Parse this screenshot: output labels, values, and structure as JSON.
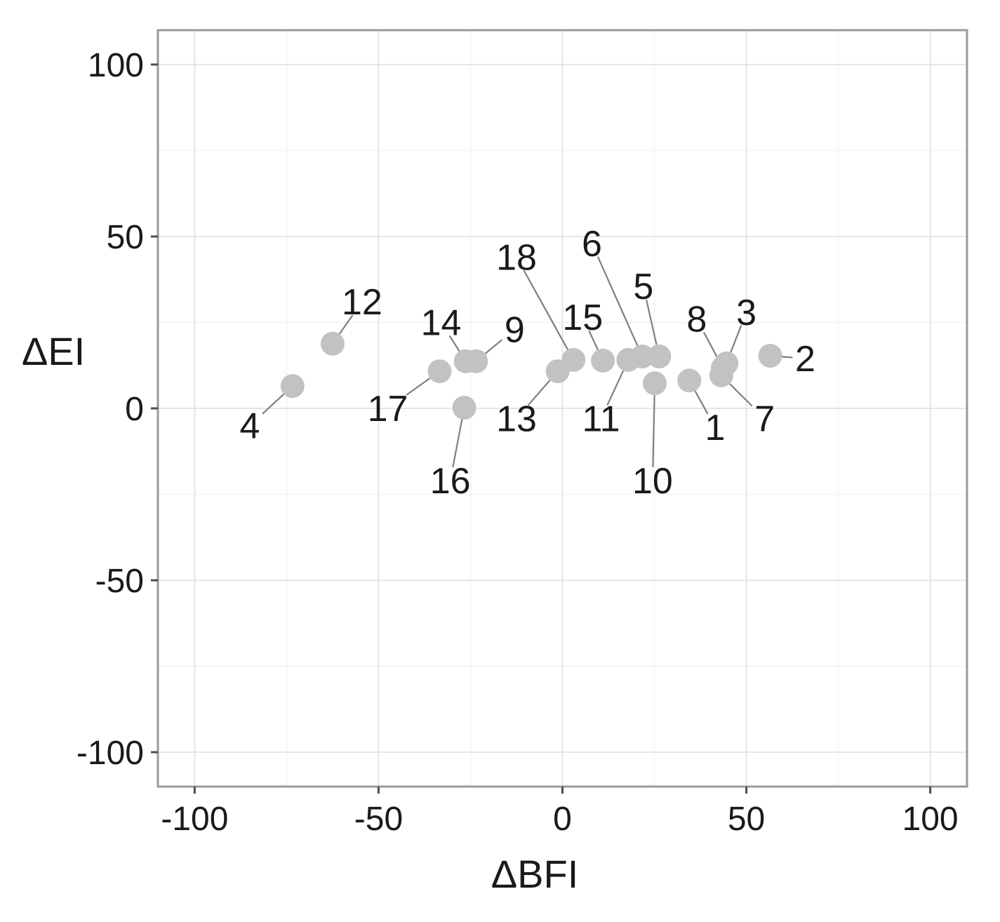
{
  "chart_data": {
    "type": "scatter",
    "xlabel": "ΔBFI",
    "ylabel": "ΔEI",
    "xlim": [
      -110,
      110
    ],
    "ylim": [
      -110,
      110
    ],
    "x_ticks": [
      -100,
      -50,
      0,
      50,
      100
    ],
    "y_ticks": [
      -100,
      -50,
      0,
      50,
      100
    ],
    "x_tick_labels": [
      "-100",
      "-50",
      "0",
      "50",
      "100"
    ],
    "y_tick_labels": [
      "-100",
      "-50",
      "0",
      "50",
      "100"
    ],
    "grid": true,
    "legend": "none",
    "point_color": "#c2c2c2",
    "points": [
      {
        "label": "1",
        "x": 34.5,
        "y": 8.1
      },
      {
        "label": "2",
        "x": 56.5,
        "y": 15.3
      },
      {
        "label": "3",
        "x": 44.6,
        "y": 13.1
      },
      {
        "label": "4",
        "x": -73.4,
        "y": 6.5
      },
      {
        "label": "5",
        "x": 26.3,
        "y": 15.1
      },
      {
        "label": "6",
        "x": 21.7,
        "y": 15.1
      },
      {
        "label": "7",
        "x": 43.2,
        "y": 9.6
      },
      {
        "label": "8",
        "x": 43.6,
        "y": 11.8
      },
      {
        "label": "9",
        "x": -23.5,
        "y": 13.7
      },
      {
        "label": "10",
        "x": 25.1,
        "y": 7.3
      },
      {
        "label": "11",
        "x": 17.9,
        "y": 14.1
      },
      {
        "label": "12",
        "x": -62.5,
        "y": 18.8
      },
      {
        "label": "13",
        "x": -1.3,
        "y": 10.8
      },
      {
        "label": "14",
        "x": -26.3,
        "y": 13.7
      },
      {
        "label": "15",
        "x": 11.0,
        "y": 13.9
      },
      {
        "label": "16",
        "x": -26.7,
        "y": 0.2
      },
      {
        "label": "17",
        "x": -33.4,
        "y": 10.8
      },
      {
        "label": "18",
        "x": 3.0,
        "y": 14.1
      }
    ],
    "labels": [
      {
        "label": "1",
        "x": 41.5,
        "y": -5.5
      },
      {
        "label": "2",
        "x": 66.0,
        "y": 14.5
      },
      {
        "label": "3",
        "x": 50.0,
        "y": 28.0
      },
      {
        "label": "4",
        "x": -85.0,
        "y": -5.0
      },
      {
        "label": "5",
        "x": 22.0,
        "y": 35.5
      },
      {
        "label": "6",
        "x": 8.0,
        "y": 48.0
      },
      {
        "label": "7",
        "x": 55.0,
        "y": -3.0
      },
      {
        "label": "8",
        "x": 36.5,
        "y": 26.0
      },
      {
        "label": "9",
        "x": -13.0,
        "y": 23.0
      },
      {
        "label": "10",
        "x": 24.5,
        "y": -21.0
      },
      {
        "label": "11",
        "x": 10.5,
        "y": -3.0
      },
      {
        "label": "12",
        "x": -54.5,
        "y": 31.0
      },
      {
        "label": "13",
        "x": -12.5,
        "y": -3.0
      },
      {
        "label": "14",
        "x": -33.0,
        "y": 25.0
      },
      {
        "label": "15",
        "x": 5.5,
        "y": 26.5
      },
      {
        "label": "16",
        "x": -30.5,
        "y": -21.0
      },
      {
        "label": "17",
        "x": -47.5,
        "y": 0.0
      },
      {
        "label": "18",
        "x": -12.5,
        "y": 44.0
      }
    ]
  }
}
